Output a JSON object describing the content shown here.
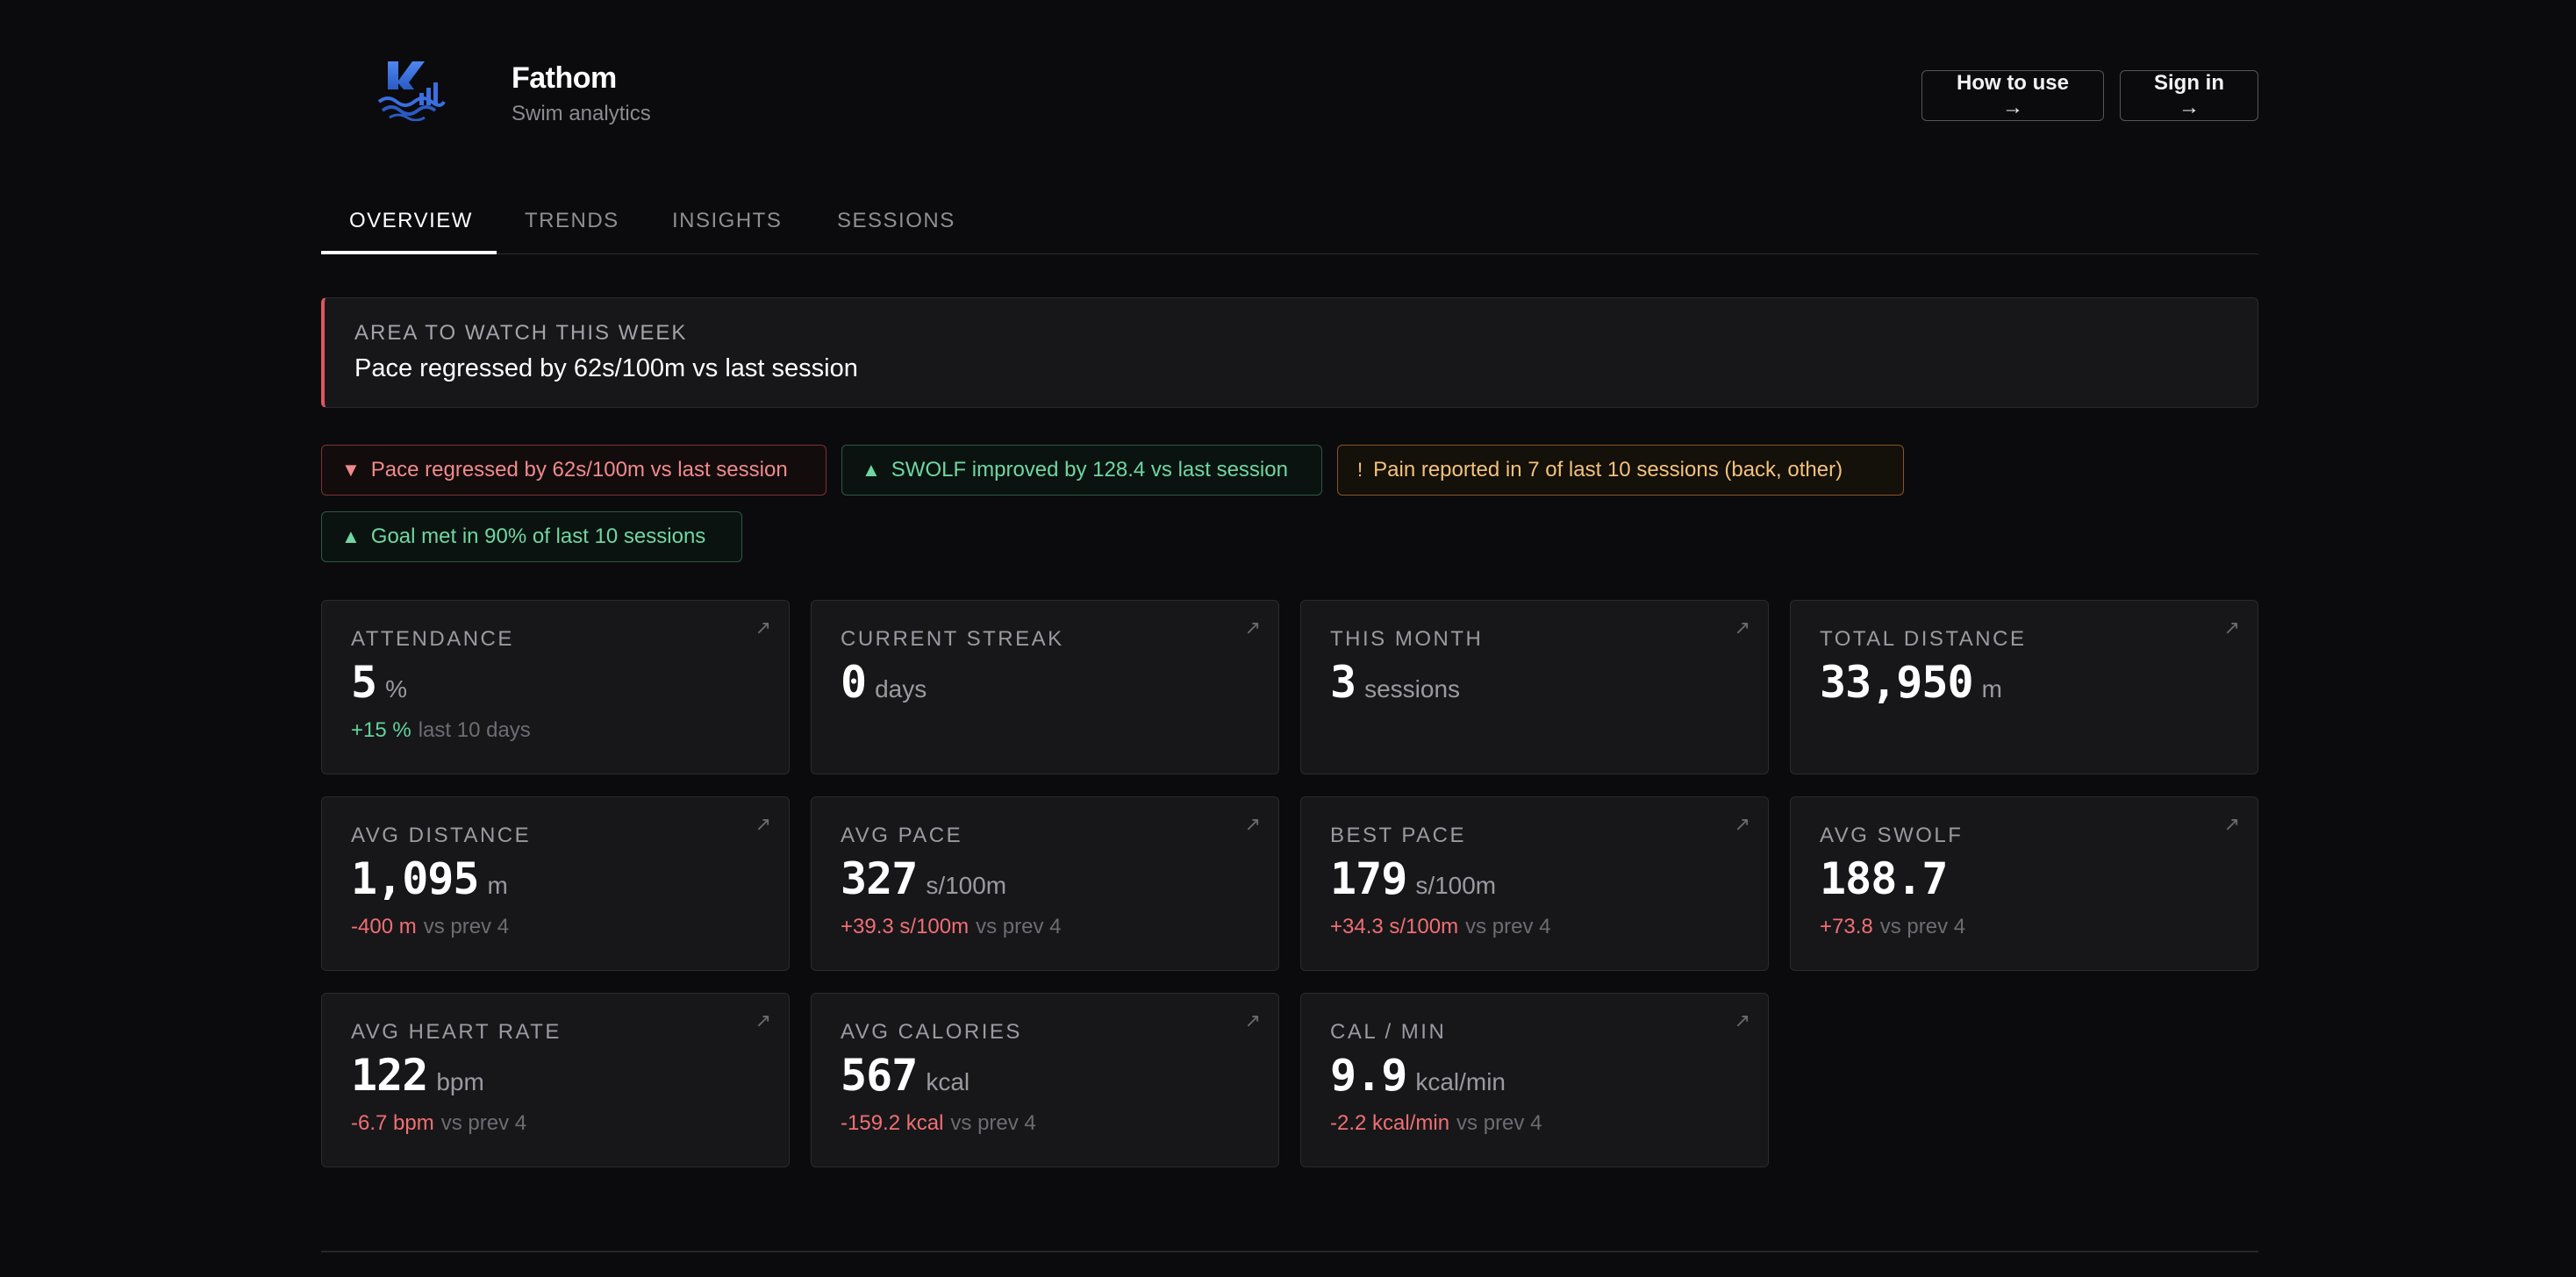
{
  "brand": {
    "title": "Fathom",
    "subtitle": "Swim analytics",
    "logo_icon": "swimmer-logo-icon"
  },
  "header": {
    "how_to_use": "How to use →",
    "sign_in": "Sign in →"
  },
  "tabs": [
    {
      "label": "OVERVIEW",
      "active": true
    },
    {
      "label": "TRENDS",
      "active": false
    },
    {
      "label": "INSIGHTS",
      "active": false
    },
    {
      "label": "SESSIONS",
      "active": false
    }
  ],
  "alert": {
    "label": "AREA TO WATCH THIS WEEK",
    "text": "Pace regressed by 62s/100m vs last session",
    "accent": "#e0575b"
  },
  "chips": [
    {
      "glyph": "▼",
      "text": "Pace regressed by 62s/100m vs last session",
      "tone": "red"
    },
    {
      "glyph": "▲",
      "text": "SWOLF improved by 128.4 vs last session",
      "tone": "green"
    },
    {
      "glyph": "!",
      "text": "Pain reported in 7 of last 10 sessions (back, other)",
      "tone": "amber"
    },
    {
      "glyph": "▲",
      "text": "Goal met in 90% of last 10 sessions",
      "tone": "green"
    }
  ],
  "cards": [
    {
      "label": "ATTENDANCE",
      "value": "5",
      "unit": "%",
      "delta": "+15 %",
      "delta_tone": "green",
      "note": "last 10 days"
    },
    {
      "label": "CURRENT STREAK",
      "value": "0",
      "unit": "days",
      "delta": "",
      "delta_tone": "",
      "note": ""
    },
    {
      "label": "THIS MONTH",
      "value": "3",
      "unit": "sessions",
      "delta": "",
      "delta_tone": "",
      "note": ""
    },
    {
      "label": "TOTAL DISTANCE",
      "value": "33,950",
      "unit": "m",
      "delta": "",
      "delta_tone": "",
      "note": ""
    },
    {
      "label": "AVG DISTANCE",
      "value": "1,095",
      "unit": "m",
      "delta": "-400 m",
      "delta_tone": "red",
      "note": "vs prev 4"
    },
    {
      "label": "AVG PACE",
      "value": "327",
      "unit": "s/100m",
      "delta": "+39.3 s/100m",
      "delta_tone": "red",
      "note": "vs prev 4"
    },
    {
      "label": "BEST PACE",
      "value": "179",
      "unit": "s/100m",
      "delta": "+34.3 s/100m",
      "delta_tone": "red",
      "note": "vs prev 4"
    },
    {
      "label": "AVG SWOLF",
      "value": "188.7",
      "unit": "",
      "delta": "+73.8",
      "delta_tone": "red",
      "note": "vs prev 4"
    },
    {
      "label": "AVG HEART RATE",
      "value": "122",
      "unit": "bpm",
      "delta": "-6.7 bpm",
      "delta_tone": "red",
      "note": "vs prev 4"
    },
    {
      "label": "AVG CALORIES",
      "value": "567",
      "unit": "kcal",
      "delta": "-159.2 kcal",
      "delta_tone": "red",
      "note": "vs prev 4"
    },
    {
      "label": "CAL / MIN",
      "value": "9.9",
      "unit": "kcal/min",
      "delta": "-2.2 kcal/min",
      "delta_tone": "red",
      "note": "vs prev 4"
    }
  ],
  "card_arrow_glyph": "↗"
}
